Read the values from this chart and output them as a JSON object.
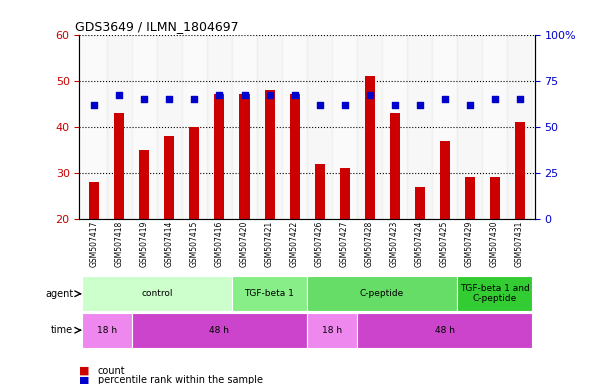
{
  "title": "GDS3649 / ILMN_1804697",
  "samples": [
    "GSM507417",
    "GSM507418",
    "GSM507419",
    "GSM507414",
    "GSM507415",
    "GSM507416",
    "GSM507420",
    "GSM507421",
    "GSM507422",
    "GSM507426",
    "GSM507427",
    "GSM507428",
    "GSM507423",
    "GSM507424",
    "GSM507425",
    "GSM507429",
    "GSM507430",
    "GSM507431"
  ],
  "counts": [
    28,
    43,
    35,
    38,
    40,
    47,
    47,
    48,
    47,
    32,
    31,
    51,
    43,
    27,
    37,
    29,
    29,
    41
  ],
  "percentiles_right": [
    62,
    67,
    65,
    65,
    65,
    67,
    67,
    67,
    67,
    62,
    62,
    67,
    62,
    62,
    65,
    62,
    65,
    65
  ],
  "ylim_left": [
    20,
    60
  ],
  "ylim_right": [
    0,
    100
  ],
  "yticks_left": [
    20,
    30,
    40,
    50,
    60
  ],
  "yticks_right": [
    0,
    25,
    50,
    75,
    100
  ],
  "ytick_labels_right": [
    "0",
    "25",
    "50",
    "75",
    "100%"
  ],
  "bar_color": "#CC0000",
  "dot_color": "#0000CC",
  "agent_row": [
    {
      "label": "control",
      "start": 0,
      "end": 6,
      "color": "#ccffcc"
    },
    {
      "label": "TGF-beta 1",
      "start": 6,
      "end": 9,
      "color": "#88ee88"
    },
    {
      "label": "C-peptide",
      "start": 9,
      "end": 15,
      "color": "#66dd66"
    },
    {
      "label": "TGF-beta 1 and\nC-peptide",
      "start": 15,
      "end": 18,
      "color": "#33cc33"
    }
  ],
  "time_row": [
    {
      "label": "18 h",
      "start": 0,
      "end": 2,
      "color": "#ee88ee"
    },
    {
      "label": "48 h",
      "start": 2,
      "end": 9,
      "color": "#cc44cc"
    },
    {
      "label": "18 h",
      "start": 9,
      "end": 11,
      "color": "#ee88ee"
    },
    {
      "label": "48 h",
      "start": 11,
      "end": 18,
      "color": "#cc44cc"
    }
  ],
  "legend_items": [
    {
      "label": "count",
      "color": "#CC0000",
      "marker": "s"
    },
    {
      "label": "percentile rank within the sample",
      "color": "#0000CC",
      "marker": "s"
    }
  ],
  "tick_label_color_left": "#CC0000",
  "tick_label_color_right": "#0000CC",
  "plot_bg": "#ffffff",
  "label_font_size": 7,
  "bar_width": 0.4
}
